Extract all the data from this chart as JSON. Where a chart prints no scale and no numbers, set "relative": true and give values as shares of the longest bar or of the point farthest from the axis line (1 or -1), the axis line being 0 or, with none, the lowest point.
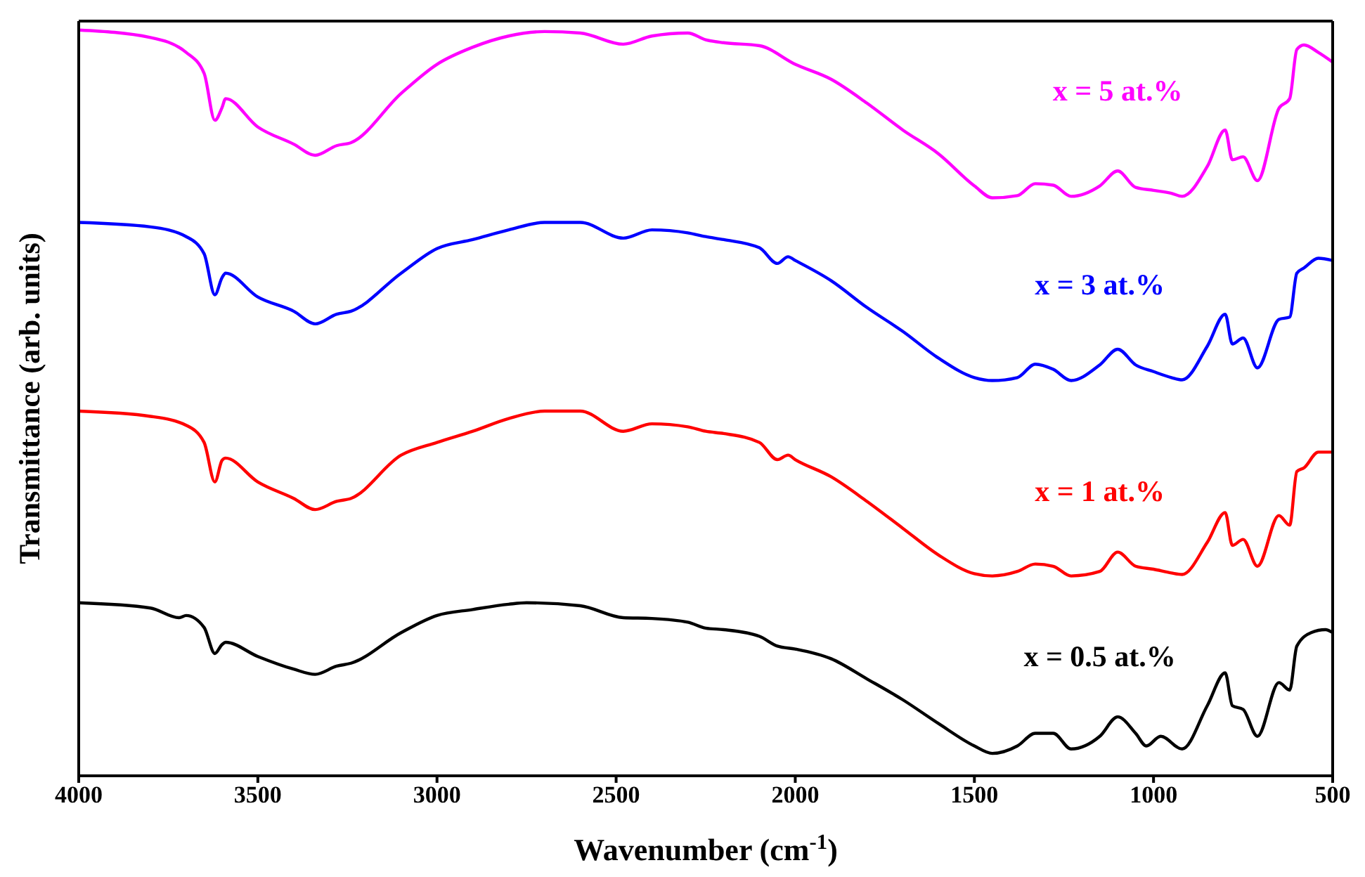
{
  "chart_data": {
    "type": "line",
    "relative": true,
    "xlabel": "Wavenumber (cm$^{-1}$)",
    "ylabel": "Transmittance (arb. units)",
    "xlim": [
      4000,
      500
    ],
    "xticks": [
      4000,
      3500,
      3000,
      2500,
      2000,
      1500,
      1000,
      500
    ],
    "marker": "none",
    "line_style": "solid",
    "legend": false,
    "grid": false,
    "series": [
      {
        "name": "x = 5 at.%",
        "color": "#ff00ff",
        "x": [
          4000,
          3800,
          3700,
          3650,
          3620,
          3600,
          3590,
          3500,
          3400,
          3340,
          3280,
          3240,
          3100,
          3000,
          2900,
          2800,
          2700,
          2600,
          2480,
          2400,
          2300,
          2250,
          2200,
          2100,
          2000,
          1900,
          1800,
          1700,
          1600,
          1500,
          1450,
          1380,
          1330,
          1280,
          1230,
          1150,
          1100,
          1050,
          1000,
          950,
          920,
          850,
          800,
          780,
          750,
          710,
          650,
          620,
          600,
          580,
          540,
          500
        ],
        "values": [
          1,
          0.99,
          0.97,
          0.942,
          0.879,
          0.896,
          0.908,
          0.87,
          0.847,
          0.832,
          0.845,
          0.849,
          0.915,
          0.954,
          0.977,
          0.992,
          0.998,
          0.996,
          0.981,
          0.992,
          0.996,
          0.987,
          0.983,
          0.979,
          0.954,
          0.934,
          0.902,
          0.866,
          0.834,
          0.791,
          0.775,
          0.778,
          0.794,
          0.792,
          0.777,
          0.791,
          0.811,
          0.789,
          0.785,
          0.781,
          0.777,
          0.817,
          0.866,
          0.826,
          0.83,
          0.798,
          0.895,
          0.908,
          0.974,
          0.98,
          0.97,
          0.957
        ]
      },
      {
        "name": "x = 3 at.%",
        "color": "#0000ff",
        "x": [
          4000,
          3800,
          3700,
          3650,
          3620,
          3600,
          3590,
          3500,
          3400,
          3340,
          3280,
          3240,
          3100,
          3000,
          2900,
          2800,
          2700,
          2600,
          2480,
          2400,
          2300,
          2250,
          2200,
          2100,
          2050,
          2020,
          2000,
          1900,
          1800,
          1700,
          1600,
          1500,
          1450,
          1380,
          1330,
          1280,
          1230,
          1150,
          1100,
          1050,
          1000,
          950,
          920,
          850,
          800,
          780,
          750,
          710,
          650,
          620,
          600,
          580,
          540,
          500
        ],
        "values": [
          0.742,
          0.736,
          0.723,
          0.7,
          0.645,
          0.668,
          0.674,
          0.642,
          0.623,
          0.606,
          0.619,
          0.623,
          0.674,
          0.707,
          0.719,
          0.732,
          0.742,
          0.742,
          0.721,
          0.732,
          0.728,
          0.723,
          0.719,
          0.708,
          0.687,
          0.696,
          0.691,
          0.664,
          0.628,
          0.596,
          0.56,
          0.534,
          0.53,
          0.534,
          0.552,
          0.545,
          0.53,
          0.551,
          0.572,
          0.551,
          0.542,
          0.534,
          0.531,
          0.576,
          0.619,
          0.579,
          0.587,
          0.547,
          0.612,
          0.615,
          0.674,
          0.681,
          0.694,
          0.691
        ]
      },
      {
        "name": "x = 1 at.%",
        "color": "#ff0000",
        "x": [
          4000,
          3800,
          3700,
          3650,
          3620,
          3600,
          3590,
          3500,
          3400,
          3340,
          3280,
          3240,
          3100,
          3000,
          2900,
          2800,
          2700,
          2600,
          2480,
          2400,
          2300,
          2250,
          2200,
          2100,
          2050,
          2020,
          2000,
          1900,
          1800,
          1700,
          1600,
          1500,
          1450,
          1380,
          1330,
          1280,
          1230,
          1150,
          1100,
          1050,
          1000,
          950,
          920,
          850,
          800,
          780,
          750,
          710,
          650,
          620,
          600,
          580,
          540,
          500
        ],
        "values": [
          0.489,
          0.482,
          0.47,
          0.447,
          0.394,
          0.423,
          0.426,
          0.394,
          0.372,
          0.357,
          0.368,
          0.372,
          0.43,
          0.447,
          0.462,
          0.479,
          0.489,
          0.489,
          0.462,
          0.472,
          0.468,
          0.462,
          0.459,
          0.447,
          0.424,
          0.43,
          0.424,
          0.401,
          0.368,
          0.332,
          0.296,
          0.271,
          0.268,
          0.274,
          0.284,
          0.281,
          0.268,
          0.274,
          0.3,
          0.281,
          0.277,
          0.272,
          0.27,
          0.313,
          0.353,
          0.309,
          0.317,
          0.281,
          0.349,
          0.336,
          0.408,
          0.413,
          0.434,
          0.434
        ]
      },
      {
        "name": "x = 0.5 at.%",
        "color": "#000000",
        "x": [
          4000,
          3800,
          3720,
          3700,
          3650,
          3620,
          3600,
          3590,
          3500,
          3400,
          3340,
          3280,
          3240,
          3100,
          3000,
          2900,
          2800,
          2750,
          2600,
          2480,
          2400,
          2300,
          2250,
          2200,
          2100,
          2050,
          2000,
          1900,
          1800,
          1700,
          1600,
          1500,
          1450,
          1380,
          1330,
          1280,
          1230,
          1150,
          1100,
          1050,
          1020,
          980,
          920,
          850,
          800,
          780,
          750,
          710,
          650,
          620,
          600,
          560,
          520,
          500
        ],
        "values": [
          0.232,
          0.225,
          0.212,
          0.215,
          0.199,
          0.164,
          0.176,
          0.179,
          0.16,
          0.143,
          0.136,
          0.147,
          0.151,
          0.192,
          0.215,
          0.223,
          0.23,
          0.232,
          0.228,
          0.212,
          0.211,
          0.206,
          0.198,
          0.196,
          0.187,
          0.174,
          0.17,
          0.157,
          0.13,
          0.102,
          0.07,
          0.04,
          0.03,
          0.04,
          0.057,
          0.057,
          0.036,
          0.053,
          0.079,
          0.057,
          0.04,
          0.053,
          0.036,
          0.094,
          0.138,
          0.094,
          0.089,
          0.053,
          0.125,
          0.115,
          0.174,
          0.192,
          0.196,
          0.192
        ]
      }
    ]
  }
}
